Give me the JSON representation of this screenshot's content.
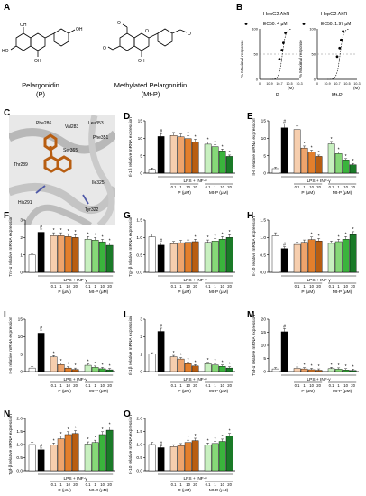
{
  "panel_A": {
    "label": "A",
    "molecule_1": {
      "name": "Pelargonidin",
      "abbr": "(P)"
    },
    "molecule_2": {
      "name": "Methylated Pelargonidin",
      "abbr": "(Mt-P)"
    },
    "atom_labels": [
      "OH",
      "HO",
      "OH",
      "OH",
      "O",
      "O",
      "O",
      "O",
      "OH"
    ]
  },
  "panel_B": {
    "label": "B",
    "chart_data": [
      {
        "type": "scatter",
        "title": "HepG2 AhR",
        "legend": "EC50: 4 μM",
        "xlabel": "P",
        "ylabel": "% Maximal response",
        "x_unit": "(M)",
        "x_ticks": [
          "0",
          "10-9",
          "10-7",
          "10-5",
          "10-3"
        ],
        "y_ticks": [
          "0",
          "50",
          "100"
        ],
        "x": [
          -6.0,
          -5.5,
          -5.2,
          -4.8
        ],
        "values": [
          40,
          58,
          72,
          92
        ]
      },
      {
        "type": "scatter",
        "title": "HepG2 AhR",
        "legend": "EC50: 1.97 μM",
        "xlabel": "Mt-P",
        "ylabel": "% Maximal response",
        "x_unit": "(M)",
        "x_ticks": [
          "0",
          "10-9",
          "10-7",
          "10-5",
          "10-3"
        ],
        "y_ticks": [
          "0",
          "50",
          "100"
        ],
        "x": [
          -6.0,
          -5.5,
          -5.2,
          -4.8
        ],
        "values": [
          45,
          62,
          78,
          95
        ]
      }
    ]
  },
  "panel_C": {
    "label": "C",
    "residues": [
      "Phe286",
      "Val283",
      "Leu353",
      "Phe351",
      "Ser365",
      "Thr289",
      "His291",
      "Ile325",
      "Tyr322"
    ]
  },
  "treatment": {
    "lps_label": "LPS + INF-γ",
    "doses": [
      "0.1",
      "1",
      "10",
      "20"
    ],
    "p_group": "P (μM)",
    "mtp_group": "Mt-P (μM)"
  },
  "colors": {
    "control": "#ffffff",
    "lps": "#000000",
    "p": [
      "#f6ceae",
      "#eea46c",
      "#e37f2c",
      "#b85e12"
    ],
    "mtp": [
      "#c8f0c0",
      "#86d878",
      "#3ab43c",
      "#1a7a28"
    ]
  },
  "bar_panels": [
    {
      "label": "D",
      "ylabel": "Il-1β relative mRNA expression",
      "yticks": [
        "0",
        "5",
        "10",
        "15"
      ],
      "ymax": 15,
      "values": [
        1.1,
        10.5,
        10.8,
        10.4,
        9.9,
        9.0,
        8.3,
        7.6,
        6.4,
        4.8
      ],
      "sig": [
        "",
        "#",
        "",
        "",
        "*",
        "*",
        "*",
        "*",
        "*",
        "*"
      ]
    },
    {
      "label": "E",
      "ylabel": "Il-6 relative mRNA expression",
      "yticks": [
        "0",
        "5",
        "10",
        "15"
      ],
      "ymax": 15,
      "values": [
        1.3,
        13.0,
        12.5,
        7.2,
        6.1,
        4.8,
        8.4,
        5.6,
        3.8,
        2.4
      ],
      "sig": [
        "",
        "#",
        "",
        "*",
        "*",
        "*",
        "*",
        "*",
        "*",
        "*"
      ]
    },
    {
      "label": "F",
      "ylabel": "Tnf-α relative mRNA expression",
      "yticks": [
        "0",
        "1",
        "2",
        "3"
      ],
      "ymax": 3,
      "values": [
        1.0,
        2.3,
        2.1,
        2.1,
        2.05,
        2.0,
        1.9,
        1.85,
        1.75,
        1.55
      ],
      "sig": [
        "",
        "#",
        "*",
        "*",
        "*",
        "*",
        "*",
        "*",
        "*",
        "*"
      ]
    },
    {
      "label": "G",
      "ylabel": "Tgf-β relative mRNA expression",
      "yticks": [
        "0.0",
        "0.5",
        "1.0",
        "1.5"
      ],
      "ymax": 1.5,
      "values": [
        1.02,
        0.78,
        0.82,
        0.85,
        0.86,
        0.88,
        0.86,
        0.9,
        0.95,
        1.0
      ],
      "sig": [
        "",
        "#",
        "",
        "",
        "",
        "*",
        "*",
        "*",
        "*",
        "*"
      ]
    },
    {
      "label": "H",
      "ylabel": "Il-10 relative mRNA expression",
      "yticks": [
        "0.0",
        "0.5",
        "1.0",
        "1.5"
      ],
      "ymax": 1.5,
      "values": [
        1.05,
        0.68,
        0.8,
        0.86,
        0.94,
        0.9,
        0.83,
        0.88,
        0.95,
        1.08
      ],
      "sig": [
        "",
        "#",
        "",
        "",
        "*",
        "*",
        "",
        "*",
        "*",
        "*"
      ]
    },
    {
      "label": "I",
      "ylabel": "Il-6 relative mRNA expression",
      "yticks": [
        "0",
        "5",
        "10",
        "15"
      ],
      "ymax": 15,
      "values": [
        1.0,
        11.0,
        4.2,
        2.0,
        1.0,
        0.6,
        1.8,
        1.2,
        0.8,
        0.5
      ],
      "sig": [
        "",
        "#",
        "*",
        "*",
        "*",
        "*",
        "*",
        "*",
        "*",
        "*"
      ]
    },
    {
      "label": "L",
      "ylabel": "Il-1β relative mRNA expression",
      "yticks": [
        "0",
        "1",
        "2",
        "3"
      ],
      "ymax": 3,
      "values": [
        1.0,
        2.3,
        0.85,
        0.72,
        0.45,
        0.32,
        0.45,
        0.38,
        0.3,
        0.2
      ],
      "sig": [
        "",
        "#",
        "*",
        "*",
        "*",
        "*",
        "*",
        "*",
        "*",
        "*"
      ]
    },
    {
      "label": "M",
      "ylabel": "Tnf-α relative mRNA expression",
      "yticks": [
        "0",
        "5",
        "10",
        "15",
        "20"
      ],
      "ymax": 20,
      "values": [
        1.0,
        15.2,
        1.2,
        1.0,
        0.7,
        0.5,
        1.1,
        0.9,
        0.6,
        0.4
      ],
      "sig": [
        "",
        "#",
        "*",
        "*",
        "*",
        "*",
        "*",
        "*",
        "*",
        "*"
      ]
    },
    {
      "label": "N",
      "ylabel": "Tgf-β relative mRNA expression",
      "yticks": [
        "0.0",
        "0.5",
        "1.0",
        "1.5",
        "2.0"
      ],
      "ymax": 2,
      "values": [
        1.0,
        0.8,
        0.98,
        1.22,
        1.38,
        1.42,
        1.02,
        1.08,
        1.38,
        1.55
      ],
      "sig": [
        "",
        "#",
        "*",
        "*",
        "*",
        "*",
        "*",
        "*",
        "*",
        "*"
      ]
    },
    {
      "label": "O",
      "ylabel": "Il-10 relative mRNA expression",
      "yticks": [
        "0.0",
        "0.5",
        "1.0",
        "1.5",
        "2.0"
      ],
      "ymax": 2,
      "values": [
        1.0,
        0.88,
        0.92,
        0.96,
        1.08,
        1.15,
        0.98,
        1.04,
        1.12,
        1.32
      ],
      "sig": [
        "",
        "#",
        "",
        "",
        "*",
        "*",
        "*",
        "*",
        "*",
        "*"
      ]
    }
  ]
}
